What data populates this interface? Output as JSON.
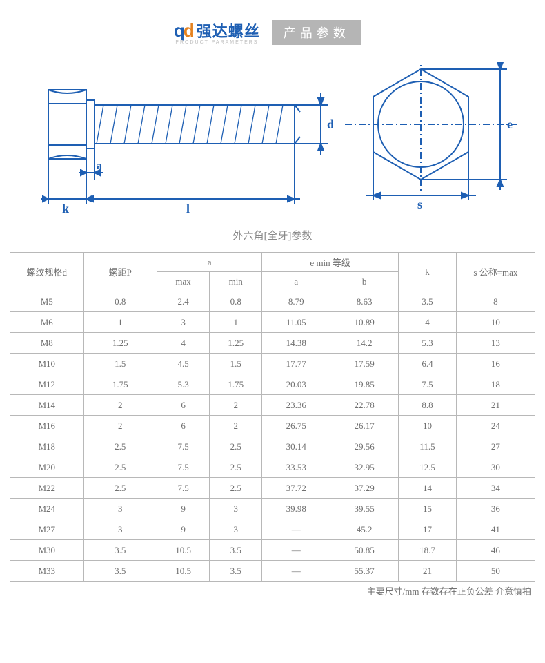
{
  "header": {
    "logo_q": "q",
    "logo_d": "d",
    "logo_cn": "强达螺丝",
    "logo_sub": "PRODUCT PARAMETERS",
    "badge": "产品参数"
  },
  "diagram": {
    "stroke": "#1e5fb3",
    "label_d": "d",
    "label_e": "e",
    "label_a": "a",
    "label_k": "k",
    "label_l": "l",
    "label_s": "s"
  },
  "caption": "外六角[全牙]参数",
  "table": {
    "headers": {
      "d": "螺纹规格d",
      "p": "螺距P",
      "a": "a",
      "a_max": "max",
      "a_min": "min",
      "e": "e min 等级",
      "e_a": "a",
      "e_b": "b",
      "k": "k",
      "s": "s 公称=max"
    },
    "rows": [
      [
        "M5",
        "0.8",
        "2.4",
        "0.8",
        "8.79",
        "8.63",
        "3.5",
        "8"
      ],
      [
        "M6",
        "1",
        "3",
        "1",
        "11.05",
        "10.89",
        "4",
        "10"
      ],
      [
        "M8",
        "1.25",
        "4",
        "1.25",
        "14.38",
        "14.2",
        "5.3",
        "13"
      ],
      [
        "M10",
        "1.5",
        "4.5",
        "1.5",
        "17.77",
        "17.59",
        "6.4",
        "16"
      ],
      [
        "M12",
        "1.75",
        "5.3",
        "1.75",
        "20.03",
        "19.85",
        "7.5",
        "18"
      ],
      [
        "M14",
        "2",
        "6",
        "2",
        "23.36",
        "22.78",
        "8.8",
        "21"
      ],
      [
        "M16",
        "2",
        "6",
        "2",
        "26.75",
        "26.17",
        "10",
        "24"
      ],
      [
        "M18",
        "2.5",
        "7.5",
        "2.5",
        "30.14",
        "29.56",
        "11.5",
        "27"
      ],
      [
        "M20",
        "2.5",
        "7.5",
        "2.5",
        "33.53",
        "32.95",
        "12.5",
        "30"
      ],
      [
        "M22",
        "2.5",
        "7.5",
        "2.5",
        "37.72",
        "37.29",
        "14",
        "34"
      ],
      [
        "M24",
        "3",
        "9",
        "3",
        "39.98",
        "39.55",
        "15",
        "36"
      ],
      [
        "M27",
        "3",
        "9",
        "3",
        "—",
        "45.2",
        "17",
        "41"
      ],
      [
        "M30",
        "3.5",
        "10.5",
        "3.5",
        "—",
        "50.85",
        "18.7",
        "46"
      ],
      [
        "M33",
        "3.5",
        "10.5",
        "3.5",
        "—",
        "55.37",
        "21",
        "50"
      ]
    ]
  },
  "footnote": "主要尺寸/mm  存数存在正负公差  介意慎拍"
}
